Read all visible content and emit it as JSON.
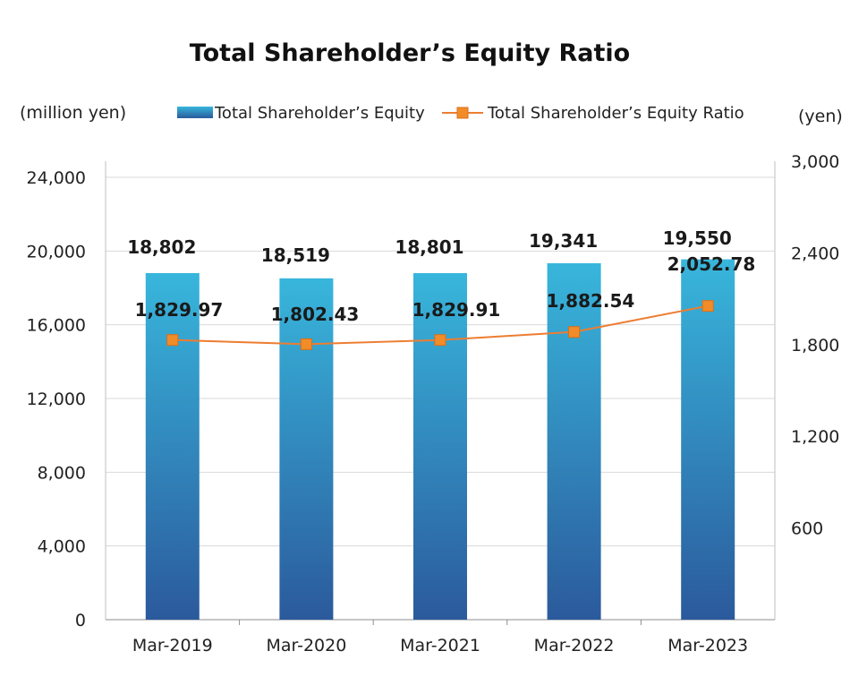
{
  "chart_data": {
    "type": "bar",
    "title": "Total Shareholder’s Equity Ratio",
    "left_unit": "(million yen)",
    "right_unit": "(yen)",
    "categories": [
      "Mar-2019",
      "Mar-2020",
      "Mar-2021",
      "Mar-2022",
      "Mar-2023"
    ],
    "series": [
      {
        "name": "Total Shareholder’s Equity",
        "type": "bar",
        "axis": "left",
        "values": [
          18802,
          18519,
          18801,
          19341,
          19550
        ],
        "labels": [
          "18,802",
          "18,519",
          "18,801",
          "19,341",
          "19,550"
        ]
      },
      {
        "name": "Total Shareholder’s Equity Ratio",
        "type": "line",
        "axis": "right",
        "values": [
          1829.97,
          1802.43,
          1829.91,
          1882.54,
          2052.78
        ],
        "labels": [
          "1,829.97",
          "1,802.43",
          "1,829.91",
          "1,882.54",
          "2,052.78"
        ]
      }
    ],
    "left_axis": {
      "ylim": [
        0,
        24000
      ],
      "ticks": [
        "0",
        "4,000",
        "8,000",
        "12,000",
        "16,000",
        "20,000",
        "24,000"
      ]
    },
    "right_axis": {
      "ylim": [
        0,
        3000
      ],
      "ticks": [
        "600",
        "1,200",
        "1,800",
        "2,400",
        "3,000"
      ]
    },
    "grid": true,
    "legend_position": "top",
    "colors": {
      "bar_top": "#38b6dc",
      "bar_bottom": "#2b5a9c",
      "line": "#ed7d31",
      "marker": "#f28c28",
      "grid": "#d9d9d9"
    }
  }
}
